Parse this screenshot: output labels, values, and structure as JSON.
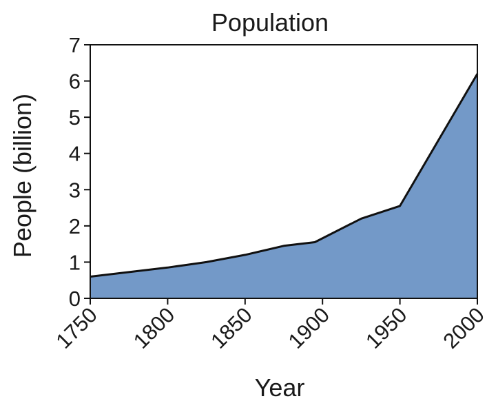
{
  "chart_data": {
    "type": "area",
    "title": "Population",
    "xlabel": "Year",
    "ylabel": "People (billion)",
    "xlim": [
      1750,
      2000
    ],
    "ylim": [
      0,
      7
    ],
    "x_ticks": [
      1750,
      1800,
      1850,
      1900,
      1950,
      2000
    ],
    "y_ticks": [
      0,
      1,
      2,
      3,
      4,
      5,
      6,
      7
    ],
    "grid": false,
    "fill_color": "#7399c8",
    "line_color": "#111111",
    "series": [
      {
        "x": [
          1750,
          1800,
          1825,
          1850,
          1875,
          1895,
          1925,
          1950,
          2000
        ],
        "y": [
          0.6,
          0.85,
          1.0,
          1.2,
          1.45,
          1.55,
          2.2,
          2.55,
          6.2
        ]
      }
    ]
  }
}
